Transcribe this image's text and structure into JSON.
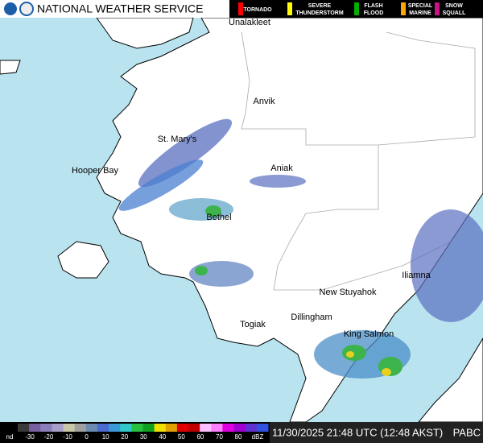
{
  "header": {
    "title": "NATIONAL WEATHER SERVICE"
  },
  "warnings": [
    {
      "label": "TORNADO",
      "color": "#ff0000"
    },
    {
      "label": "SEVERE THUNDERSTORM",
      "color": "#ffff00"
    },
    {
      "label": "FLASH FLOOD",
      "color": "#00b000"
    },
    {
      "label": "SPECIAL MARINE",
      "color": "#ffa500"
    },
    {
      "label": "SNOW SQUALL",
      "color": "#c71585"
    }
  ],
  "places": [
    "Unalakleet",
    "Anvik",
    "St. Mary's",
    "Hooper Bay",
    "Aniak",
    "Bethel",
    "New Stuyahok",
    "Iliamna",
    "Dillingham",
    "Togiak",
    "King Salmon"
  ],
  "scale": {
    "nodata": "nd",
    "ticks": [
      -30,
      -20,
      -10,
      0,
      10,
      20,
      30,
      40,
      50,
      60,
      70,
      80
    ],
    "unit": "dBZ"
  },
  "timestamp": "11/30/2025 21:48 UTC (12:48 AKST)",
  "station": "PABC"
}
